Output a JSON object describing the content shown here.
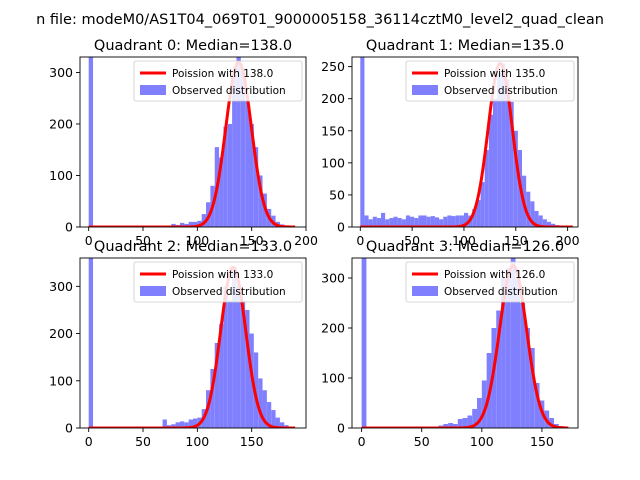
{
  "figure": {
    "suptitle": "n file: modeM0/AS1T04_069T01_9000005158_36114cztM0_level2_quad_clean"
  },
  "colors": {
    "hist": "#8080ff",
    "poisson": "#ff0000"
  },
  "chart_data": [
    {
      "type": "bar",
      "title": "Quadrant 0: Median=138.0",
      "xlim": [
        -8,
        200
      ],
      "ylim": [
        0,
        330
      ],
      "xticks": [
        0,
        50,
        100,
        150,
        200
      ],
      "yticks": [
        0,
        100,
        200,
        300
      ],
      "bin_width": 4,
      "bins": [
        {
          "x": 0,
          "y": 335
        },
        {
          "x": 76,
          "y": 6
        },
        {
          "x": 80,
          "y": 4
        },
        {
          "x": 84,
          "y": 8
        },
        {
          "x": 88,
          "y": 6
        },
        {
          "x": 92,
          "y": 10
        },
        {
          "x": 96,
          "y": 10
        },
        {
          "x": 100,
          "y": 12
        },
        {
          "x": 104,
          "y": 25
        },
        {
          "x": 108,
          "y": 48
        },
        {
          "x": 112,
          "y": 80
        },
        {
          "x": 116,
          "y": 155
        },
        {
          "x": 120,
          "y": 135
        },
        {
          "x": 124,
          "y": 195
        },
        {
          "x": 128,
          "y": 200
        },
        {
          "x": 132,
          "y": 295
        },
        {
          "x": 136,
          "y": 330
        },
        {
          "x": 140,
          "y": 300
        },
        {
          "x": 144,
          "y": 245
        },
        {
          "x": 148,
          "y": 200
        },
        {
          "x": 152,
          "y": 155
        },
        {
          "x": 156,
          "y": 100
        },
        {
          "x": 160,
          "y": 65
        },
        {
          "x": 164,
          "y": 35
        },
        {
          "x": 168,
          "y": 22
        },
        {
          "x": 172,
          "y": 10
        },
        {
          "x": 176,
          "y": 5
        }
      ],
      "poisson": {
        "mu": 138.0,
        "peak": 320,
        "x_start": 0,
        "x_end": 190
      },
      "legend": {
        "line_label": "Poission with 138.0",
        "bar_label": "Observed distribution",
        "position": "upper right"
      }
    },
    {
      "type": "bar",
      "title": "Quadrant 1: Median=135.0",
      "xlim": [
        -8,
        210
      ],
      "ylim": [
        0,
        265
      ],
      "xticks": [
        0,
        50,
        100,
        150,
        200
      ],
      "yticks": [
        0,
        50,
        100,
        150,
        200,
        250
      ],
      "bin_width": 4,
      "bins": [
        {
          "x": 0,
          "y": 270
        },
        {
          "x": 4,
          "y": 18
        },
        {
          "x": 8,
          "y": 12
        },
        {
          "x": 12,
          "y": 16
        },
        {
          "x": 16,
          "y": 14
        },
        {
          "x": 20,
          "y": 22
        },
        {
          "x": 24,
          "y": 12
        },
        {
          "x": 28,
          "y": 14
        },
        {
          "x": 32,
          "y": 16
        },
        {
          "x": 36,
          "y": 14
        },
        {
          "x": 40,
          "y": 12
        },
        {
          "x": 44,
          "y": 18
        },
        {
          "x": 48,
          "y": 16
        },
        {
          "x": 52,
          "y": 14
        },
        {
          "x": 56,
          "y": 18
        },
        {
          "x": 60,
          "y": 18
        },
        {
          "x": 64,
          "y": 16
        },
        {
          "x": 68,
          "y": 17
        },
        {
          "x": 72,
          "y": 15
        },
        {
          "x": 76,
          "y": 12
        },
        {
          "x": 80,
          "y": 16
        },
        {
          "x": 84,
          "y": 18
        },
        {
          "x": 88,
          "y": 17
        },
        {
          "x": 92,
          "y": 18
        },
        {
          "x": 96,
          "y": 18
        },
        {
          "x": 100,
          "y": 22
        },
        {
          "x": 104,
          "y": 18
        },
        {
          "x": 108,
          "y": 28
        },
        {
          "x": 112,
          "y": 42
        },
        {
          "x": 116,
          "y": 70
        },
        {
          "x": 120,
          "y": 120
        },
        {
          "x": 124,
          "y": 175
        },
        {
          "x": 128,
          "y": 200
        },
        {
          "x": 132,
          "y": 240
        },
        {
          "x": 136,
          "y": 255
        },
        {
          "x": 140,
          "y": 230
        },
        {
          "x": 144,
          "y": 195
        },
        {
          "x": 148,
          "y": 150
        },
        {
          "x": 152,
          "y": 120
        },
        {
          "x": 156,
          "y": 80
        },
        {
          "x": 160,
          "y": 55
        },
        {
          "x": 164,
          "y": 40
        },
        {
          "x": 168,
          "y": 25
        },
        {
          "x": 172,
          "y": 18
        },
        {
          "x": 176,
          "y": 12
        },
        {
          "x": 180,
          "y": 8
        },
        {
          "x": 184,
          "y": 5
        },
        {
          "x": 188,
          "y": 3
        }
      ],
      "poisson": {
        "mu": 135.0,
        "peak": 255,
        "x_start": 0,
        "x_end": 205
      },
      "legend": {
        "line_label": "Poission with 135.0",
        "bar_label": "Observed distribution",
        "position": "upper right"
      }
    },
    {
      "type": "bar",
      "title": "Quadrant 2: Median=133.0",
      "xlim": [
        -8,
        200
      ],
      "ylim": [
        0,
        360
      ],
      "xticks": [
        0,
        50,
        100,
        150
      ],
      "yticks": [
        0,
        100,
        200,
        300
      ],
      "bin_width": 4,
      "bins": [
        {
          "x": 0,
          "y": 365
        },
        {
          "x": 68,
          "y": 18
        },
        {
          "x": 72,
          "y": 6
        },
        {
          "x": 76,
          "y": 8
        },
        {
          "x": 80,
          "y": 12
        },
        {
          "x": 84,
          "y": 14
        },
        {
          "x": 88,
          "y": 12
        },
        {
          "x": 92,
          "y": 18
        },
        {
          "x": 96,
          "y": 20
        },
        {
          "x": 100,
          "y": 22
        },
        {
          "x": 104,
          "y": 40
        },
        {
          "x": 108,
          "y": 80
        },
        {
          "x": 112,
          "y": 125
        },
        {
          "x": 116,
          "y": 180
        },
        {
          "x": 120,
          "y": 220
        },
        {
          "x": 124,
          "y": 300
        },
        {
          "x": 128,
          "y": 270
        },
        {
          "x": 132,
          "y": 340
        },
        {
          "x": 136,
          "y": 300
        },
        {
          "x": 140,
          "y": 270
        },
        {
          "x": 144,
          "y": 250
        },
        {
          "x": 148,
          "y": 200
        },
        {
          "x": 152,
          "y": 160
        },
        {
          "x": 156,
          "y": 105
        },
        {
          "x": 160,
          "y": 80
        },
        {
          "x": 164,
          "y": 55
        },
        {
          "x": 168,
          "y": 38
        },
        {
          "x": 172,
          "y": 22
        },
        {
          "x": 176,
          "y": 12
        },
        {
          "x": 180,
          "y": 6
        }
      ],
      "poisson": {
        "mu": 133.0,
        "peak": 340,
        "x_start": 0,
        "x_end": 190
      },
      "legend": {
        "line_label": "Poission with 133.0",
        "bar_label": "Observed distribution",
        "position": "upper right"
      }
    },
    {
      "type": "bar",
      "title": "Quadrant 3: Median=126.0",
      "xlim": [
        -8,
        180
      ],
      "ylim": [
        0,
        340
      ],
      "xticks": [
        0,
        50,
        100,
        150
      ],
      "yticks": [
        0,
        100,
        200,
        300
      ],
      "bin_width": 4,
      "bins": [
        {
          "x": 0,
          "y": 345
        },
        {
          "x": 64,
          "y": 5
        },
        {
          "x": 68,
          "y": 8
        },
        {
          "x": 72,
          "y": 10
        },
        {
          "x": 76,
          "y": 8
        },
        {
          "x": 80,
          "y": 18
        },
        {
          "x": 84,
          "y": 20
        },
        {
          "x": 88,
          "y": 25
        },
        {
          "x": 92,
          "y": 38
        },
        {
          "x": 96,
          "y": 60
        },
        {
          "x": 100,
          "y": 95
        },
        {
          "x": 104,
          "y": 150
        },
        {
          "x": 108,
          "y": 200
        },
        {
          "x": 112,
          "y": 235
        },
        {
          "x": 116,
          "y": 300
        },
        {
          "x": 120,
          "y": 320
        },
        {
          "x": 124,
          "y": 345
        },
        {
          "x": 128,
          "y": 300
        },
        {
          "x": 132,
          "y": 250
        },
        {
          "x": 136,
          "y": 200
        },
        {
          "x": 140,
          "y": 160
        },
        {
          "x": 144,
          "y": 90
        },
        {
          "x": 148,
          "y": 55
        },
        {
          "x": 152,
          "y": 35
        },
        {
          "x": 156,
          "y": 20
        },
        {
          "x": 160,
          "y": 8
        },
        {
          "x": 164,
          "y": 4
        }
      ],
      "poisson": {
        "mu": 126.0,
        "peak": 325,
        "x_start": 0,
        "x_end": 172
      },
      "legend": {
        "line_label": "Poission with 126.0",
        "bar_label": "Observed distribution",
        "position": "upper right"
      }
    }
  ]
}
